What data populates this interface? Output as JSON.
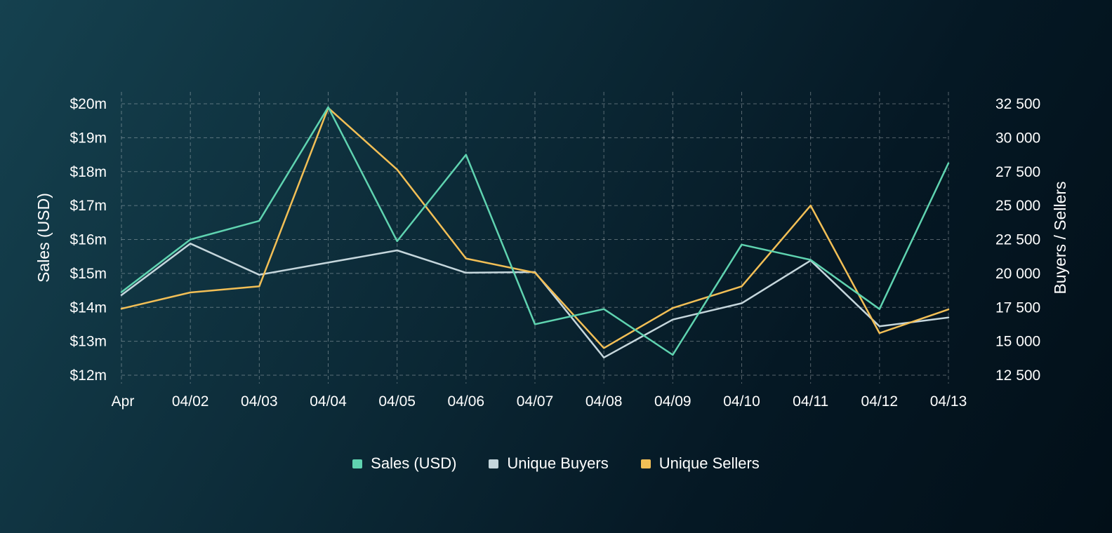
{
  "chart_data": {
    "type": "line",
    "x": [
      "Apr",
      "04/02",
      "04/03",
      "04/04",
      "04/05",
      "04/06",
      "04/07",
      "04/08",
      "04/09",
      "04/10",
      "04/11",
      "04/12",
      "04/13"
    ],
    "y_left": {
      "label": "Sales (USD)",
      "range": [
        12,
        20
      ],
      "ticks": [
        12,
        13,
        14,
        15,
        16,
        17,
        18,
        19,
        20
      ],
      "tick_labels": [
        "$12m",
        "$13m",
        "$14m",
        "$15m",
        "$16m",
        "$17m",
        "$18m",
        "$19m",
        "$20m"
      ]
    },
    "y_right": {
      "label": "Buyers / Sellers",
      "range": [
        12500,
        32500
      ],
      "ticks": [
        12500,
        15000,
        17500,
        20000,
        22500,
        25000,
        27500,
        30000,
        32500
      ],
      "tick_labels": [
        "12 500",
        "15 000",
        "17 500",
        "20 000",
        "22 500",
        "25 000",
        "27 500",
        "30 000",
        "32 500"
      ]
    },
    "grid": true,
    "legend_position": "bottom",
    "series": [
      {
        "name": "Sales (USD)",
        "axis": "left",
        "color": "#5fd3b0",
        "values": [
          14.45,
          16.0,
          16.55,
          19.9,
          15.95,
          18.5,
          13.5,
          13.95,
          12.6,
          15.85,
          15.4,
          13.95,
          18.25
        ]
      },
      {
        "name": "Unique Buyers",
        "axis": "right",
        "color": "#c5d6dc",
        "values": [
          18400,
          22200,
          19900,
          20800,
          21700,
          20050,
          20100,
          13800,
          16600,
          17800,
          20950,
          16100,
          16750
        ]
      },
      {
        "name": "Unique Sellers",
        "axis": "right",
        "color": "#f2bf56",
        "values": [
          17400,
          18600,
          19050,
          32200,
          27650,
          21100,
          20050,
          14500,
          17450,
          19050,
          25000,
          15600,
          17350
        ]
      }
    ]
  }
}
